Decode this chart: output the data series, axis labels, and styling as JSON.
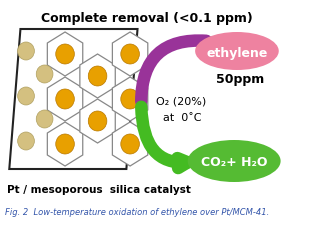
{
  "title": "Complete removal (<0.1 ppm)",
  "title_fontsize": 9,
  "title_color": "#000000",
  "background_color": "#ffffff",
  "ethylene_label": "ethylene",
  "ethylene_ppm": "50ppm",
  "ethylene_ellipse_color": "#ee82a0",
  "o2_label": "O₂ (20%)",
  "temp_label": "at  0˚C",
  "product_label": "CO₂+ H₂O",
  "product_ellipse_color": "#55bb33",
  "catalyst_label": "Pt / mesoporous  silica catalyst",
  "fig_caption": "Fig. 2  Low-temperature oxidation of ethylene over Pt/MCM-41.",
  "arrow_color_top": "#993399",
  "arrow_color_bottom": "#44bb22",
  "hex_edge_color": "#888888",
  "outer_edge_color": "#222222",
  "pt_color_front": "#e8a000",
  "pt_color_back": "#d4c080",
  "pt_edge_front": "#b87800",
  "pt_edge_back": "#b0a060"
}
